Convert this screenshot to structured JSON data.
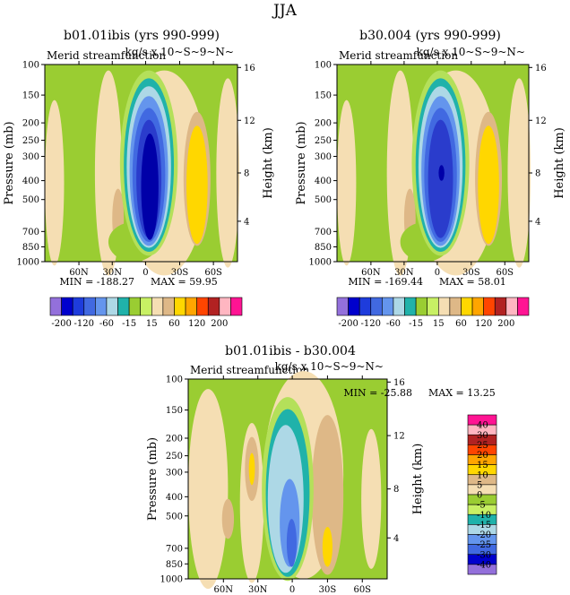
{
  "figure": {
    "season": "JJA",
    "colors": {
      "neg4": "#0000a8",
      "neg3": "#2a3ccc",
      "neg2": "#4169e1",
      "neg1": "#6495ed",
      "neg0": "#add8e6",
      "teal": "#20b2aa",
      "green1": "#9acd32",
      "green2": "#b4e05a",
      "beige": "#f5deb3",
      "tan": "#deb887",
      "yellow": "#ffd700",
      "orange": "#ffa500"
    }
  },
  "chart_data": [
    {
      "type": "heatmap",
      "title": "b01.01ibis (yrs 990-999)",
      "subtitle_left": "Merid streamfunction",
      "subtitle_right": "kg/s x 10~S~9~N~",
      "xlabel": "",
      "ylabel": "Pressure (mb)",
      "ylabel_right": "Height (km)",
      "x_ticks": [
        "60N",
        "30N",
        "0",
        "30S",
        "60S"
      ],
      "y_ticks": [
        "100",
        "150",
        "200",
        "250",
        "300",
        "400",
        "500",
        "700",
        "850",
        "1000"
      ],
      "y_right_ticks": [
        "16",
        "12",
        "8",
        "4"
      ],
      "ylim": [
        1000,
        100
      ],
      "min_label": "MIN = -188.27",
      "max_label": "MAX = 59.95",
      "colorbar": {
        "orientation": "horizontal",
        "labels": [
          "-200",
          "-120",
          "-60",
          "-15",
          "15",
          "60",
          "120",
          "200"
        ],
        "colors": [
          "#9370db",
          "#0000cd",
          "#1e3cdc",
          "#4169e1",
          "#6495ed",
          "#add8e6",
          "#20b2aa",
          "#9acd32",
          "#c8f064",
          "#f5deb3",
          "#deb887",
          "#ffd700",
          "#ffa500",
          "#ff4500",
          "#b22222",
          "#ffb6c1",
          "#ff1493"
        ]
      }
    },
    {
      "type": "heatmap",
      "title": "b30.004 (yrs 990-999)",
      "subtitle_left": "Merid streamfunction",
      "subtitle_right": "kg/s x 10~S~9~N~",
      "xlabel": "",
      "ylabel": "Pressure (mb)",
      "ylabel_right": "Height (km)",
      "x_ticks": [
        "60N",
        "30N",
        "0",
        "30S",
        "60S"
      ],
      "y_ticks": [
        "100",
        "150",
        "200",
        "250",
        "300",
        "400",
        "500",
        "700",
        "850",
        "1000"
      ],
      "y_right_ticks": [
        "16",
        "12",
        "8",
        "4"
      ],
      "ylim": [
        1000,
        100
      ],
      "min_label": "MIN = -169.44",
      "max_label": "MAX = 58.01",
      "colorbar": {
        "orientation": "horizontal",
        "labels": [
          "-200",
          "-120",
          "-60",
          "-15",
          "15",
          "60",
          "120",
          "200"
        ],
        "colors": [
          "#9370db",
          "#0000cd",
          "#1e3cdc",
          "#4169e1",
          "#6495ed",
          "#add8e6",
          "#20b2aa",
          "#9acd32",
          "#c8f064",
          "#f5deb3",
          "#deb887",
          "#ffd700",
          "#ffa500",
          "#ff4500",
          "#b22222",
          "#ffb6c1",
          "#ff1493"
        ]
      }
    },
    {
      "type": "heatmap",
      "title": "b01.01ibis - b30.004",
      "subtitle_left": "Merid streamfunction",
      "subtitle_right": "kg/s x 10~S~9~N~",
      "xlabel": "",
      "ylabel": "Pressure (mb)",
      "ylabel_right": "Height (km)",
      "x_ticks": [
        "60N",
        "30N",
        "0",
        "30S",
        "60S"
      ],
      "y_ticks": [
        "100",
        "150",
        "200",
        "250",
        "300",
        "400",
        "500",
        "700",
        "850",
        "1000"
      ],
      "y_right_ticks": [
        "16",
        "12",
        "8",
        "4"
      ],
      "ylim": [
        1000,
        100
      ],
      "min_label": "MIN = -25.88",
      "max_label": "MAX = 13.25",
      "colorbar": {
        "orientation": "vertical",
        "labels": [
          "40",
          "30",
          "25",
          "20",
          "15",
          "10",
          "5",
          "0",
          "-5",
          "-10",
          "-15",
          "-20",
          "-25",
          "-30",
          "-40"
        ],
        "colors": [
          "#ff1493",
          "#ffb6c1",
          "#b22222",
          "#ff4500",
          "#ffa500",
          "#ffd700",
          "#deb887",
          "#f5deb3",
          "#9acd32",
          "#c8f064",
          "#20b2aa",
          "#add8e6",
          "#6495ed",
          "#4169e1",
          "#0000cd",
          "#9370db"
        ]
      }
    }
  ]
}
